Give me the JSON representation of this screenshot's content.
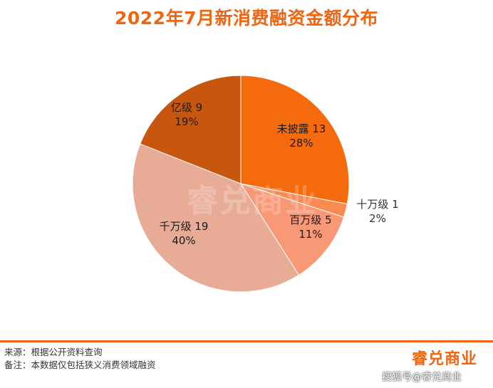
{
  "page": {
    "title": "2022年7月新消费融资金额分布",
    "source_note": "来源：根据公开资料查询",
    "remark_note": "备注：本数据仅包括狭义消费领域融资",
    "brand_logo": "睿兑商业",
    "watermark": "睿兑商业",
    "platform_tag": "搜狐号@睿兑商业"
  },
  "chart_data": {
    "type": "pie",
    "title": "2022年7月新消费融资金额分布",
    "slices": [
      {
        "name": "未披露",
        "count": 13,
        "percent": 28,
        "label": "未披露 13",
        "pct_label": "28%",
        "color": "#f56a0d",
        "text_color": "#1a1a1a"
      },
      {
        "name": "十万级",
        "count": 1,
        "percent": 2,
        "label": "十万级 1",
        "pct_label": "2%",
        "color": "#f78b52",
        "text_color": "#333333"
      },
      {
        "name": "百万级",
        "count": 5,
        "percent": 11,
        "label": "百万级 5",
        "pct_label": "11%",
        "color": "#f99876",
        "text_color": "#1a1a1a"
      },
      {
        "name": "千万级",
        "count": 19,
        "percent": 40,
        "label": "千万级 19",
        "pct_label": "40%",
        "color": "#e8ac96",
        "text_color": "#1a1a1a"
      },
      {
        "name": "亿级",
        "count": 9,
        "percent": 19,
        "label": "亿级 9",
        "pct_label": "19%",
        "color": "#c7570f",
        "text_color": "#1a1a1a"
      }
    ]
  }
}
